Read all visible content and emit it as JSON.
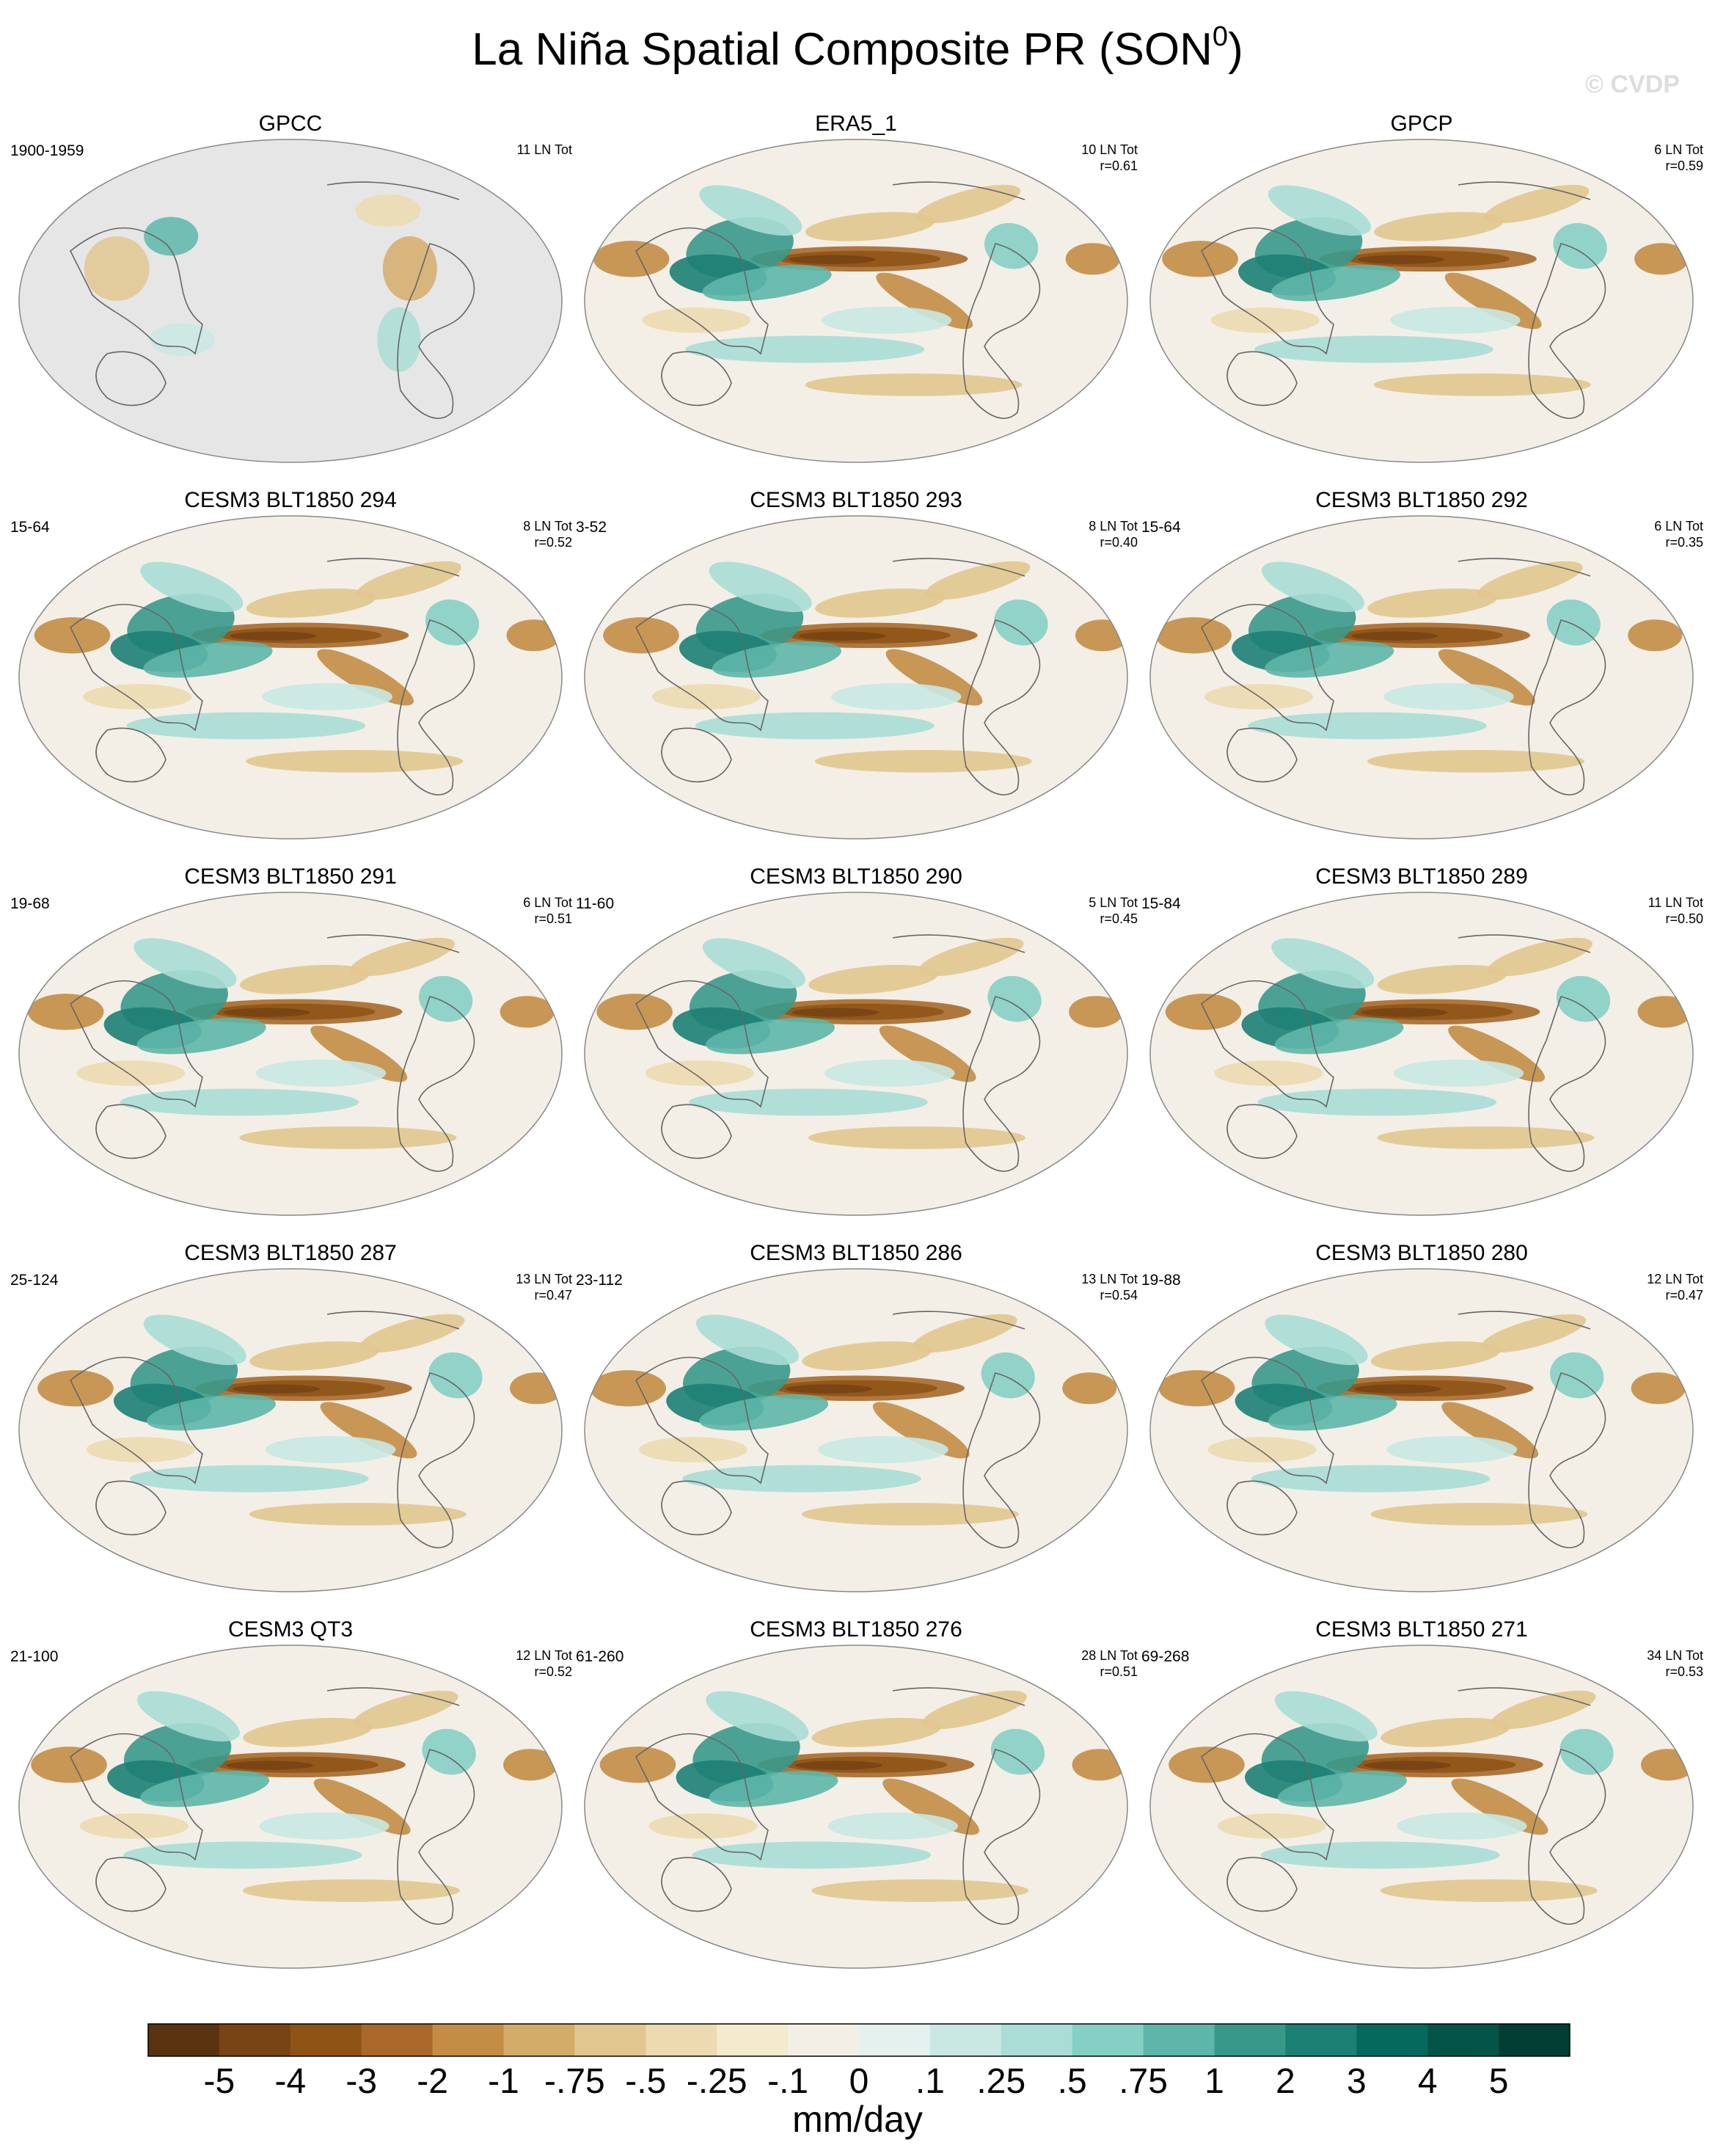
{
  "title": {
    "main": "La Niña Spatial Composite PR (SON",
    "sup": "0",
    "close": ")"
  },
  "watermark": "© CVDP",
  "chart_data": {
    "type": "map-panels",
    "projection": "Robinson (Pacific-centered)",
    "variable": "PR",
    "units": "mm/day",
    "panels": [
      {
        "title": "GPCC",
        "years": "1900-1959",
        "events": "11 LN Tot",
        "r": "",
        "no_data_over_ocean": true
      },
      {
        "title": "ERA5_1",
        "years": "",
        "events": "10 LN Tot",
        "r": "r=0.61"
      },
      {
        "title": "GPCP",
        "years": "",
        "events": "6 LN Tot",
        "r": "r=0.59"
      },
      {
        "title": "CESM3 BLT1850 294",
        "years": "15-64",
        "events": "8 LN Tot",
        "r": "r=0.52"
      },
      {
        "title": "CESM3 BLT1850 293",
        "years": "3-52",
        "events": "8 LN Tot",
        "r": "r=0.40"
      },
      {
        "title": "CESM3 BLT1850 292",
        "years": "15-64",
        "events": "6 LN Tot",
        "r": "r=0.35"
      },
      {
        "title": "CESM3 BLT1850 291",
        "years": "19-68",
        "events": "6 LN Tot",
        "r": "r=0.51"
      },
      {
        "title": "CESM3 BLT1850 290",
        "years": "11-60",
        "events": "5 LN Tot",
        "r": "r=0.45"
      },
      {
        "title": "CESM3 BLT1850 289",
        "years": "15-84",
        "events": "11 LN Tot",
        "r": "r=0.50"
      },
      {
        "title": "CESM3 BLT1850 287",
        "years": "25-124",
        "events": "13 LN Tot",
        "r": "r=0.47"
      },
      {
        "title": "CESM3 BLT1850 286",
        "years": "23-112",
        "events": "13 LN Tot",
        "r": "r=0.54"
      },
      {
        "title": "CESM3 BLT1850 280",
        "years": "19-88",
        "events": "12 LN Tot",
        "r": "r=0.47"
      },
      {
        "title": "CESM3 QT3",
        "years": "21-100",
        "events": "12 LN Tot",
        "r": "r=0.52"
      },
      {
        "title": "CESM3 BLT1850 276",
        "years": "61-260",
        "events": "28 LN Tot",
        "r": "r=0.51"
      },
      {
        "title": "CESM3 BLT1850 271",
        "years": "69-268",
        "events": "34 LN Tot",
        "r": "r=0.53"
      }
    ],
    "colorbar": {
      "label": "mm/day",
      "ticks": [
        "-5",
        "-4",
        "-3",
        "-2",
        "-1",
        "-.75",
        "-.5",
        "-.25",
        "-.1",
        "0",
        ".1",
        ".25",
        ".5",
        ".75",
        "1",
        "2",
        "3",
        "4",
        "5"
      ],
      "colors": [
        "#5a3310",
        "#784414",
        "#8f5316",
        "#a8692a",
        "#c38d46",
        "#d3ac6a",
        "#e1c68f",
        "#ecdab0",
        "#f4ebcf",
        "#f3efe7",
        "#e5f1ef",
        "#c9e8e3",
        "#a9ddd5",
        "#86cfc4",
        "#5db6a9",
        "#38998b",
        "#1d8074",
        "#056a5d",
        "#045547",
        "#023e33"
      ]
    }
  }
}
